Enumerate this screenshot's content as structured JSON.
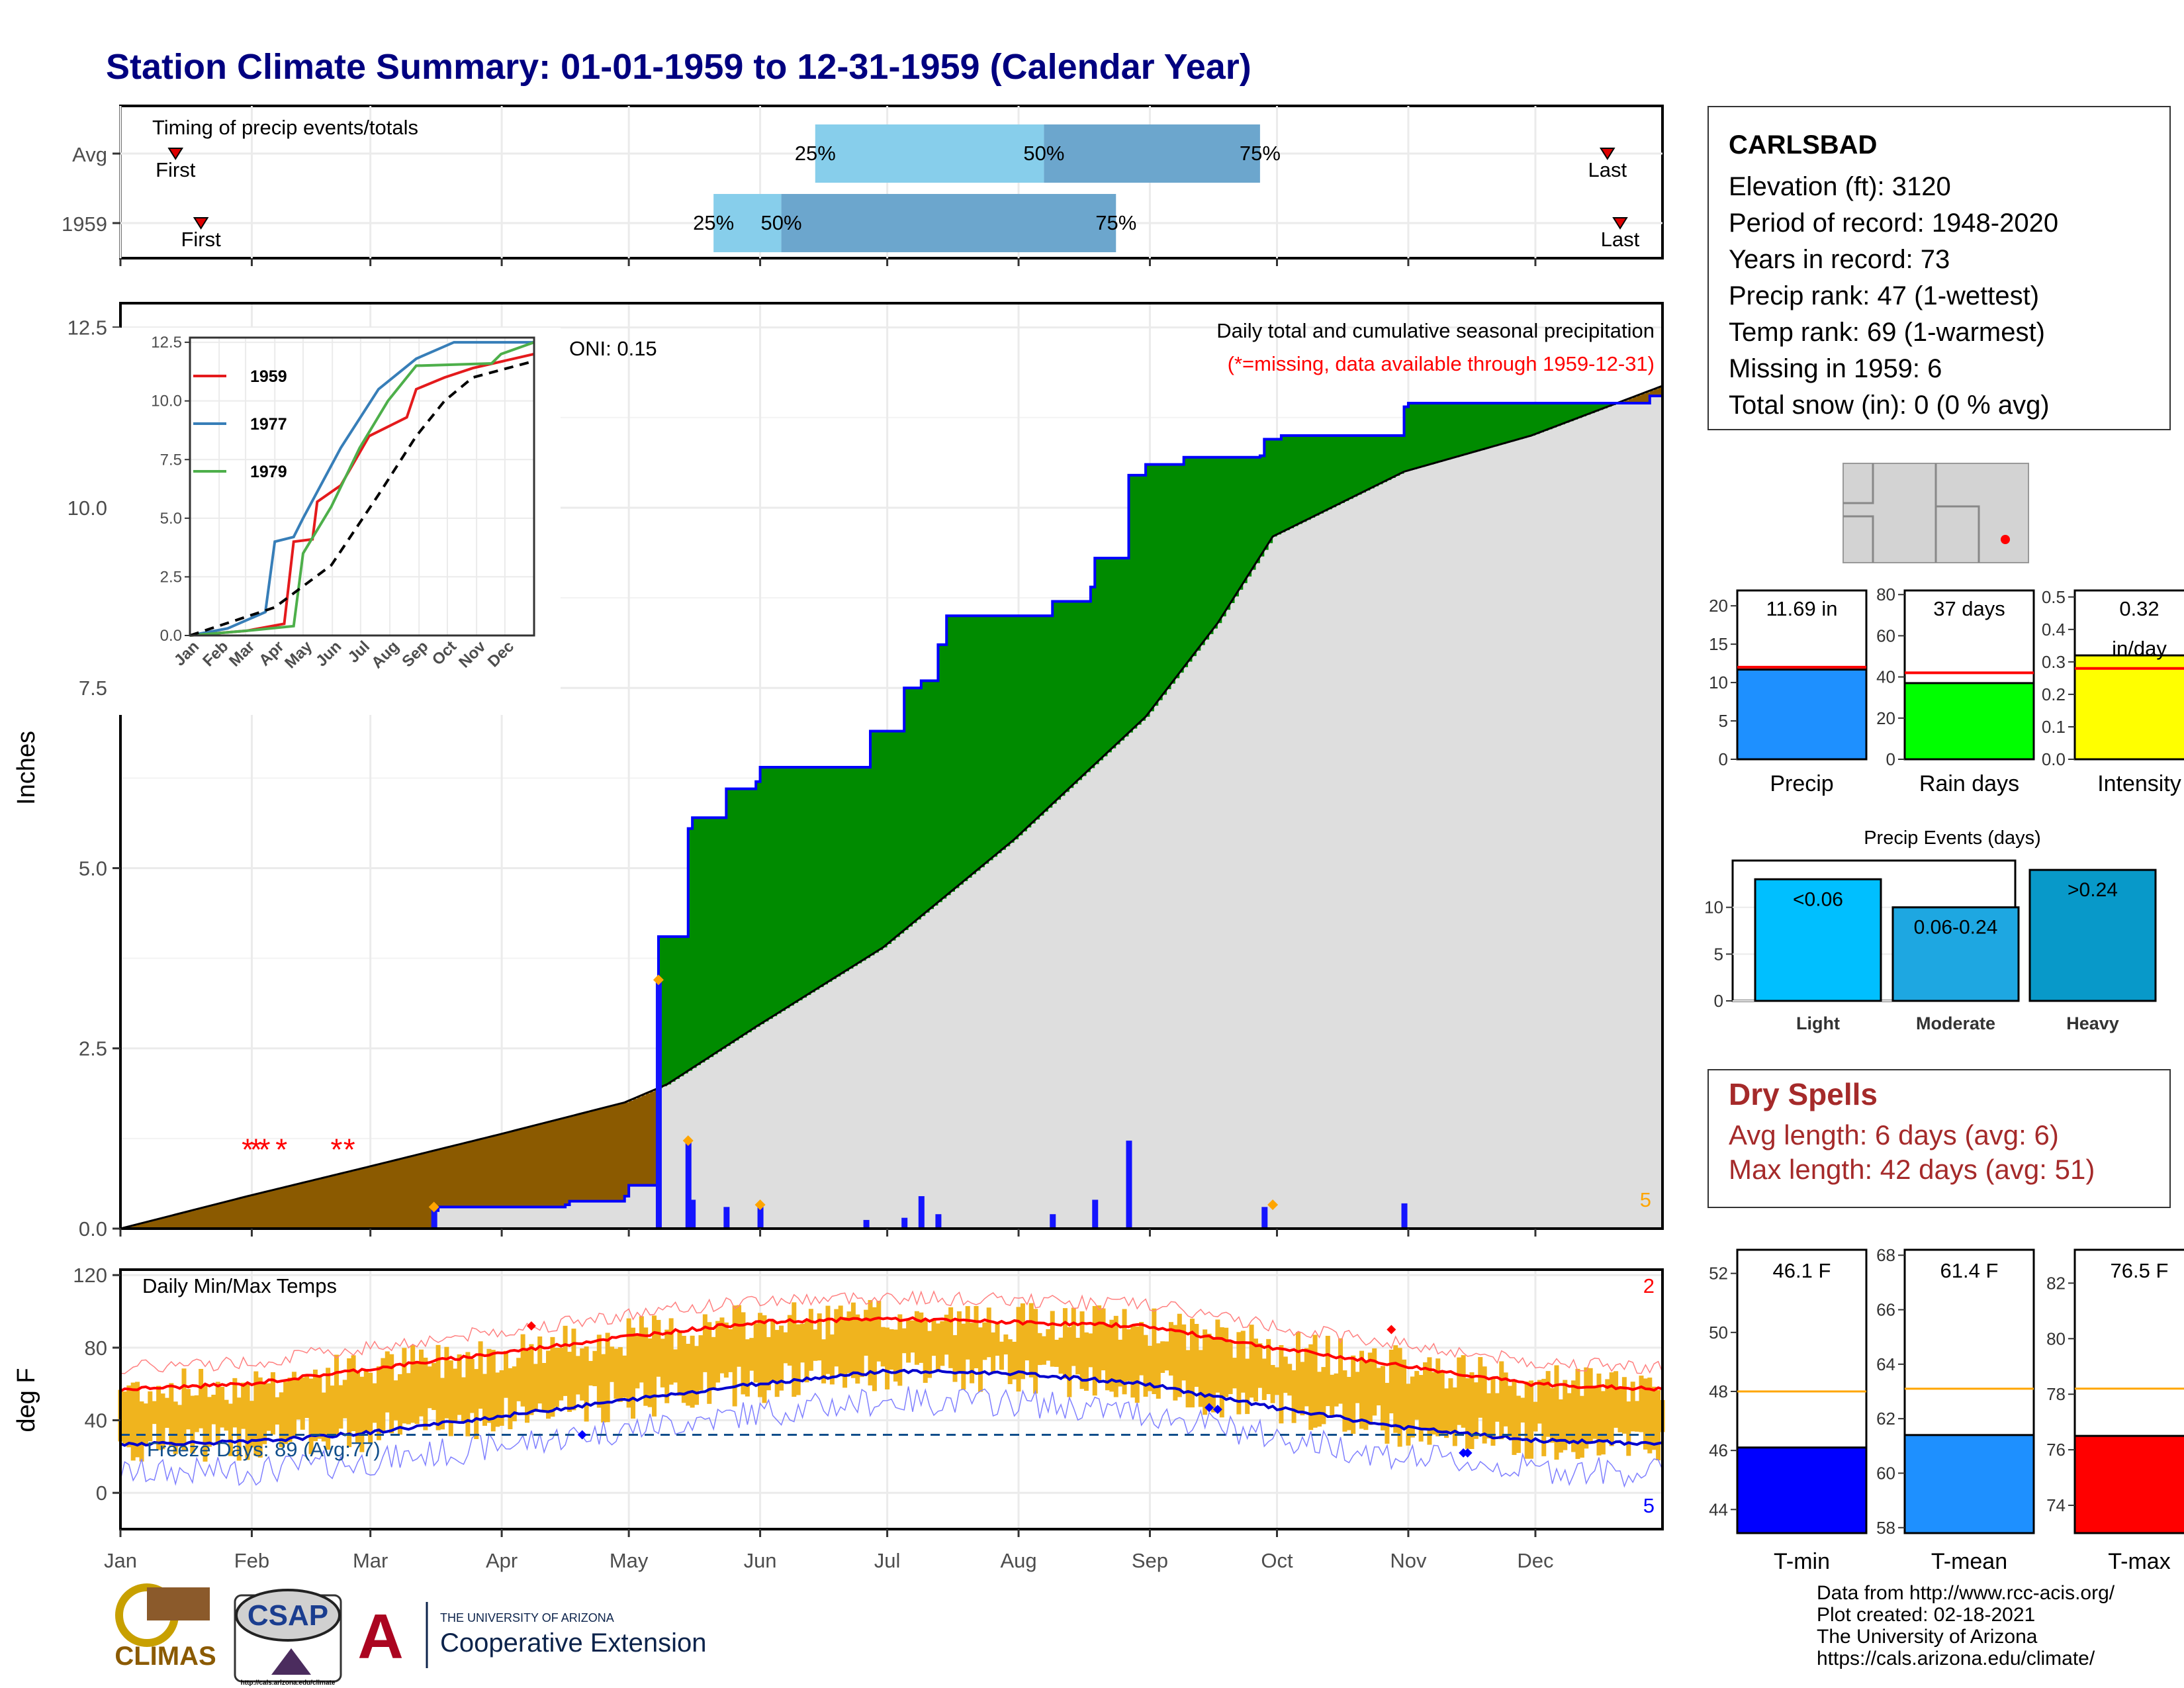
{
  "title": "Station Climate Summary: 01-01-1959 to 12-31-1959 (Calendar Year)",
  "timing": {
    "label": "Timing of precip events/totals",
    "rows": [
      {
        "name": "Avg",
        "first_label": "First",
        "last_label": "Last",
        "p25": "25%",
        "p50": "50%",
        "p75": "75%"
      },
      {
        "name": "1959",
        "first_label": "First",
        "last_label": "Last",
        "p25": "25%",
        "p50": "50%",
        "p75": "75%"
      }
    ]
  },
  "info": {
    "station": "CARLSBAD",
    "lines": [
      "Elevation (ft): 3120",
      "Period of record: 1948-2020",
      "Years in record: 73",
      "Precip rank: 47 (1-wettest)",
      "Temp rank: 69 (1-warmest)",
      "Missing in 1959: 6",
      "Total snow (in): 0 (0 % avg)"
    ]
  },
  "precip_panel": {
    "ylabel": "Inches",
    "oni": "ONI: 0.15",
    "subtitle": "Daily total and cumulative seasonal precipitation",
    "missing_note": "(*=missing, data available through 1959-12-31)",
    "corner_count": "5",
    "yticks": [
      "0.0",
      "2.5",
      "5.0",
      "7.5",
      "10.0",
      "12.5"
    ]
  },
  "inset": {
    "yticks": [
      "0.0",
      "2.5",
      "5.0",
      "7.5",
      "10.0",
      "12.5"
    ],
    "months": [
      "Jan",
      "Feb",
      "Mar",
      "Apr",
      "May",
      "Jun",
      "Jul",
      "Aug",
      "Sep",
      "Oct",
      "Nov",
      "Dec"
    ],
    "legend": [
      {
        "name": "1959",
        "color": "#e41a1c"
      },
      {
        "name": "1977",
        "color": "#377eb8"
      },
      {
        "name": "1979",
        "color": "#4daf4a"
      }
    ]
  },
  "temp_panel": {
    "ylabel": "deg F",
    "label": "Daily Min/Max Temps",
    "freeze": "Freeze Days: 89 (Avg:77)",
    "count_top": "2",
    "count_bottom": "5",
    "yticks": [
      "0",
      "40",
      "80",
      "120"
    ]
  },
  "months": [
    "Jan",
    "Feb",
    "Mar",
    "Apr",
    "May",
    "Jun",
    "Jul",
    "Aug",
    "Sep",
    "Oct",
    "Nov",
    "Dec"
  ],
  "bars_small": [
    {
      "label": "Precip",
      "value_label": "11.69 in",
      "color": "#1e90ff",
      "yticks": [
        "0",
        "5",
        "10",
        "15",
        "20"
      ]
    },
    {
      "label": "Rain days",
      "value_label": "37 days",
      "color": "#00ff00",
      "yticks": [
        "0",
        "20",
        "40",
        "60",
        "80"
      ]
    },
    {
      "label": "Intensity",
      "value_label": "0.32",
      "value_label2": "in/day",
      "color": "#ffff00",
      "yticks": [
        "0.0",
        "0.1",
        "0.2",
        "0.3",
        "0.4",
        "0.5"
      ]
    }
  ],
  "events": {
    "title": "Precip Events (days)",
    "yticks": [
      "0",
      "5",
      "10"
    ],
    "bars": [
      {
        "label": "Light",
        "value_label": "<0.06",
        "color": "#00bfff"
      },
      {
        "label": "Moderate",
        "value_label": "0.06-0.24",
        "color": "#1ea7e1"
      },
      {
        "label": "Heavy",
        "value_label": ">0.24",
        "color": "#0899c9"
      }
    ]
  },
  "dry_spells": {
    "title": "Dry Spells",
    "avg": "Avg length: 6 days (avg: 6)",
    "max": "Max length: 42 days (avg: 51)"
  },
  "temp_bars": [
    {
      "label": "T-min",
      "value_label": "46.1 F",
      "color": "#0000ff",
      "yticks": [
        "44",
        "46",
        "48",
        "50",
        "52"
      ]
    },
    {
      "label": "T-mean",
      "value_label": "61.4 F",
      "color": "#1e90ff",
      "yticks": [
        "58",
        "60",
        "62",
        "64",
        "66",
        "68"
      ]
    },
    {
      "label": "T-max",
      "value_label": "76.5 F",
      "color": "#ff0000",
      "yticks": [
        "74",
        "76",
        "78",
        "80",
        "82"
      ]
    }
  ],
  "logos": {
    "climas": "CLIMAS",
    "csap": "CSAP",
    "ua_small": "THE UNIVERSITY OF ARIZONA",
    "ua_big": "Cooperative Extension",
    "csap_url": "http://cals.arizona.edu/climate"
  },
  "footer": [
    "Data from http://www.rcc-acis.org/",
    "Plot created: 02-18-2021",
    "The University of Arizona",
    "https://cals.arizona.edu/climate/"
  ],
  "chart_data": [
    {
      "type": "bar",
      "name": "timing",
      "x_units": "day of year",
      "rows": [
        {
          "name": "Avg",
          "first": 14,
          "p25": 165,
          "p50": 219,
          "p75": 270,
          "last": 352
        },
        {
          "name": "1959",
          "first": 20,
          "p25": 141,
          "p50": 157,
          "p75": 236,
          "last": 355
        }
      ]
    },
    {
      "type": "area",
      "name": "cumulative precipitation 1959",
      "ylim": [
        0,
        12.8
      ],
      "avg_cumulative": [
        [
          1,
          0
        ],
        [
          31,
          0.45
        ],
        [
          59,
          0.85
        ],
        [
          90,
          1.3
        ],
        [
          120,
          1.75
        ],
        [
          130,
          2.0
        ],
        [
          151,
          2.8
        ],
        [
          181,
          3.9
        ],
        [
          212,
          5.4
        ],
        [
          243,
          7.1
        ],
        [
          260,
          8.4
        ],
        [
          273,
          9.6
        ],
        [
          304,
          10.5
        ],
        [
          334,
          11.0
        ],
        [
          365,
          11.69
        ]
      ],
      "year_cumulative": [
        [
          1,
          0
        ],
        [
          70,
          0
        ],
        [
          75,
          0.25
        ],
        [
          76,
          0.3
        ],
        [
          106,
          0.33
        ],
        [
          107,
          0.38
        ],
        [
          120,
          0.45
        ],
        [
          121,
          0.6
        ],
        [
          127,
          0.6
        ],
        [
          128,
          4.05
        ],
        [
          134,
          4.05
        ],
        [
          135,
          5.55
        ],
        [
          136,
          5.7
        ],
        [
          143,
          5.7
        ],
        [
          144,
          6.1
        ],
        [
          151,
          6.2
        ],
        [
          152,
          6.4
        ],
        [
          177,
          6.4
        ],
        [
          178,
          6.9
        ],
        [
          185,
          6.9
        ],
        [
          186,
          7.5
        ],
        [
          190,
          7.6
        ],
        [
          194,
          8.1
        ],
        [
          196,
          8.5
        ],
        [
          220,
          8.5
        ],
        [
          221,
          8.7
        ],
        [
          230,
          8.9
        ],
        [
          231,
          9.3
        ],
        [
          238,
          9.3
        ],
        [
          239,
          10.45
        ],
        [
          243,
          10.6
        ],
        [
          252,
          10.7
        ],
        [
          270,
          10.72
        ],
        [
          271,
          10.95
        ],
        [
          275,
          11.0
        ],
        [
          303,
          11.0
        ],
        [
          304,
          11.4
        ],
        [
          305,
          11.45
        ],
        [
          358,
          11.45
        ],
        [
          362,
          11.55
        ],
        [
          365,
          11.69
        ]
      ],
      "daily": [
        [
          75,
          0.28
        ],
        [
          128,
          3.45
        ],
        [
          135,
          1.22
        ],
        [
          136,
          0.4
        ],
        [
          144,
          0.3
        ],
        [
          152,
          0.3
        ],
        [
          177,
          0.12
        ],
        [
          186,
          0.15
        ],
        [
          190,
          0.45
        ],
        [
          194,
          0.2
        ],
        [
          221,
          0.2
        ],
        [
          231,
          0.4
        ],
        [
          239,
          1.22
        ],
        [
          271,
          0.3
        ],
        [
          304,
          0.35
        ]
      ],
      "missing_days": [
        31,
        33,
        35,
        39,
        52,
        55
      ]
    },
    {
      "type": "line",
      "name": "inset cumulative comparison",
      "ylim": [
        0,
        12.5
      ],
      "series": [
        {
          "name": "1959",
          "points": [
            [
              0,
              0
            ],
            [
              60,
              0.2
            ],
            [
              100,
              0.5
            ],
            [
              110,
              4.0
            ],
            [
              130,
              4.1
            ],
            [
              135,
              5.7
            ],
            [
              160,
              6.4
            ],
            [
              190,
              8.5
            ],
            [
              230,
              9.3
            ],
            [
              240,
              10.5
            ],
            [
              270,
              11.0
            ],
            [
              300,
              11.4
            ],
            [
              365,
              12.0
            ]
          ]
        },
        {
          "name": "1977",
          "points": [
            [
              0,
              0
            ],
            [
              40,
              0.3
            ],
            [
              80,
              1.0
            ],
            [
              90,
              4.0
            ],
            [
              110,
              4.2
            ],
            [
              120,
              5.0
            ],
            [
              160,
              8.0
            ],
            [
              200,
              10.5
            ],
            [
              240,
              11.8
            ],
            [
              280,
              12.5
            ],
            [
              365,
              12.5
            ]
          ]
        },
        {
          "name": "1979",
          "points": [
            [
              0,
              0
            ],
            [
              60,
              0.2
            ],
            [
              110,
              0.4
            ],
            [
              120,
              3.5
            ],
            [
              150,
              5.5
            ],
            [
              180,
              8.0
            ],
            [
              210,
              10.0
            ],
            [
              240,
              11.5
            ],
            [
              320,
              11.6
            ],
            [
              330,
              12.0
            ],
            [
              365,
              12.5
            ]
          ]
        },
        {
          "name": "avg",
          "points": [
            [
              0,
              0
            ],
            [
              90,
              1.2
            ],
            [
              150,
              3.0
            ],
            [
              200,
              6.0
            ],
            [
              240,
              8.5
            ],
            [
              270,
              10.0
            ],
            [
              300,
              11.0
            ],
            [
              365,
              11.7
            ]
          ]
        }
      ]
    },
    {
      "type": "line",
      "name": "daily temperatures",
      "ylim": [
        -20,
        120
      ],
      "freeze_line": 32,
      "avg_max": [
        [
          1,
          57
        ],
        [
          31,
          60
        ],
        [
          59,
          68
        ],
        [
          90,
          77
        ],
        [
          120,
          86
        ],
        [
          151,
          94
        ],
        [
          181,
          96
        ],
        [
          212,
          94
        ],
        [
          243,
          92
        ],
        [
          273,
          80
        ],
        [
          304,
          70
        ],
        [
          334,
          60
        ],
        [
          365,
          57
        ]
      ],
      "avg_min": [
        [
          1,
          27
        ],
        [
          31,
          28
        ],
        [
          59,
          33
        ],
        [
          90,
          42
        ],
        [
          120,
          51
        ],
        [
          151,
          60
        ],
        [
          181,
          67
        ],
        [
          212,
          66
        ],
        [
          243,
          60
        ],
        [
          273,
          47
        ],
        [
          304,
          36
        ],
        [
          334,
          29
        ],
        [
          365,
          27
        ]
      ]
    },
    {
      "type": "bar",
      "name": "annual totals",
      "series": [
        {
          "name": "Precip",
          "value": 11.69,
          "avg": 12.0,
          "ylim": [
            0,
            22
          ]
        },
        {
          "name": "Rain days",
          "value": 37,
          "avg": 42,
          "ylim": [
            0,
            82
          ]
        },
        {
          "name": "Intensity",
          "value": 0.32,
          "avg": 0.28,
          "ylim": [
            0,
            0.52
          ]
        }
      ]
    },
    {
      "type": "bar",
      "name": "Precip Events (days)",
      "categories": [
        "Light",
        "Moderate",
        "Heavy"
      ],
      "values": [
        13,
        10,
        14
      ],
      "ylim": [
        0,
        15
      ]
    },
    {
      "type": "bar",
      "name": "mean temperatures",
      "series": [
        {
          "name": "T-min",
          "value": 46.1,
          "avg": 48.0,
          "ylim": [
            43.2,
            52.8
          ]
        },
        {
          "name": "T-mean",
          "value": 61.4,
          "avg": 63.1,
          "ylim": [
            57.8,
            68.2
          ]
        },
        {
          "name": "T-max",
          "value": 76.5,
          "avg": 78.2,
          "ylim": [
            73,
            83.2
          ]
        }
      ]
    }
  ]
}
